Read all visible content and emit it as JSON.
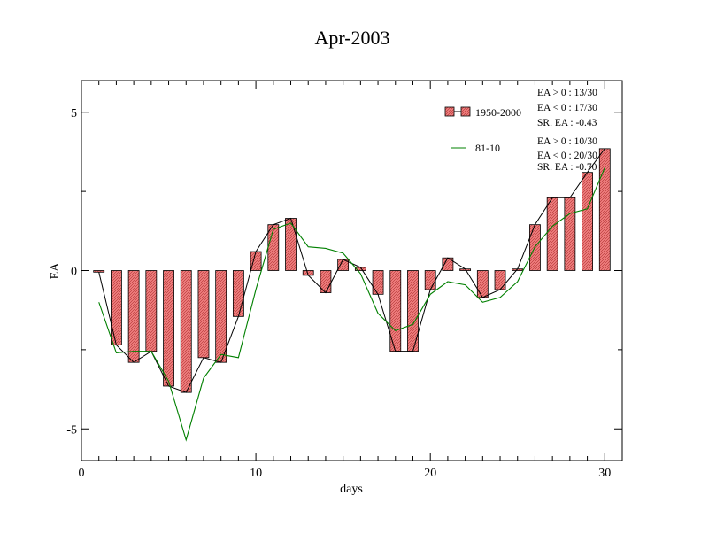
{
  "chart_data": {
    "type": "bar",
    "title": "Apr-2003",
    "xlabel": "days",
    "ylabel": "EA",
    "xlim": [
      0,
      31
    ],
    "ylim": [
      -6,
      6
    ],
    "x_ticks": [
      0,
      10,
      20,
      30
    ],
    "y_ticks": [
      -5,
      0,
      5
    ],
    "x_tick_labels": [
      "0",
      "10",
      "20",
      "30"
    ],
    "y_tick_labels": [
      "-5",
      "0",
      "5"
    ],
    "days": [
      1,
      2,
      3,
      4,
      5,
      6,
      7,
      8,
      9,
      10,
      11,
      12,
      13,
      14,
      15,
      16,
      17,
      18,
      19,
      20,
      21,
      22,
      23,
      24,
      25,
      26,
      27,
      28,
      29,
      30
    ],
    "series": [
      {
        "name": "1950-2000",
        "kind": "bar",
        "color": "#f08080",
        "values": [
          -0.05,
          -2.35,
          -2.9,
          -2.55,
          -3.65,
          -3.85,
          -2.75,
          -2.9,
          -1.45,
          0.6,
          1.45,
          1.65,
          -0.15,
          -0.7,
          0.35,
          0.1,
          -0.75,
          -2.55,
          -2.55,
          -0.6,
          0.4,
          0.05,
          -0.85,
          -0.6,
          0.05,
          1.45,
          2.3,
          2.3,
          3.1,
          3.85
        ]
      },
      {
        "name": "81-10",
        "kind": "line",
        "color": "#008000",
        "values": [
          -1.0,
          -2.6,
          -2.55,
          -2.55,
          -3.5,
          -5.35,
          -3.4,
          -2.65,
          -2.75,
          -0.6,
          1.3,
          1.5,
          0.75,
          0.7,
          0.55,
          -0.1,
          -1.35,
          -1.9,
          -1.7,
          -0.75,
          -0.35,
          -0.45,
          -1.0,
          -0.85,
          -0.35,
          0.75,
          1.4,
          1.8,
          1.95,
          3.25
        ]
      }
    ],
    "stats": {
      "line1": "EA > 0 : 13/30",
      "line2": "EA < 0 : 17/30",
      "line3": "SR. EA : -0.43",
      "line4": "EA > 0 : 10/30",
      "line5": "EA < 0 : 20/30",
      "line6": "SR. EA : -0.70"
    },
    "legend_position": "top-right",
    "grid": false
  }
}
